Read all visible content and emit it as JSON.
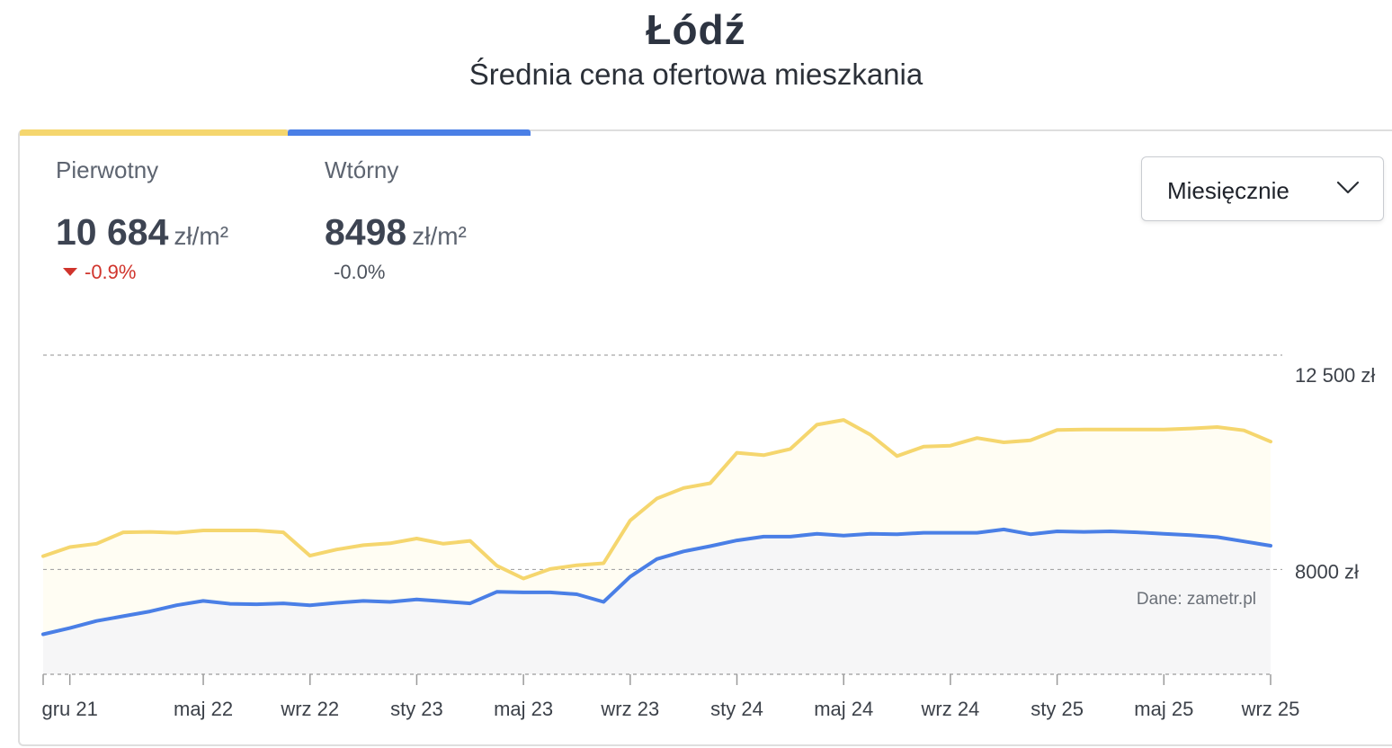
{
  "header": {
    "title": "Łódź",
    "subtitle": "Średnia cena ofertowa mieszkania"
  },
  "tabs": [
    {
      "label": "Pierwotny",
      "value": "10 684",
      "unit": "zł/m²",
      "change": "-0.9%",
      "trend": "down",
      "color": "#f5d66e"
    },
    {
      "label": "Wtórny",
      "value": "8498",
      "unit": "zł/m²",
      "change": "-0.0%",
      "trend": "flat",
      "color": "#4a7fe6"
    }
  ],
  "period_select": {
    "value": "Miesięcznie",
    "icon": "chevron-down-icon"
  },
  "source_note": "Dane: zametr.pl",
  "chart_data": {
    "type": "line",
    "x": [
      "2021-11",
      "2021-12",
      "2022-01",
      "2022-02",
      "2022-03",
      "2022-04",
      "2022-05",
      "2022-06",
      "2022-07",
      "2022-08",
      "2022-09",
      "2022-10",
      "2022-11",
      "2022-12",
      "2023-01",
      "2023-02",
      "2023-03",
      "2023-04",
      "2023-05",
      "2023-06",
      "2023-07",
      "2023-08",
      "2023-09",
      "2023-10",
      "2023-11",
      "2023-12",
      "2024-01",
      "2024-02",
      "2024-03",
      "2024-04",
      "2024-05",
      "2024-06",
      "2024-07",
      "2024-08",
      "2024-09",
      "2024-10",
      "2024-11",
      "2024-12",
      "2025-01",
      "2025-02",
      "2025-03",
      "2025-04",
      "2025-05",
      "2025-06",
      "2025-07",
      "2025-08",
      "2025-09"
    ],
    "series": [
      {
        "name": "Pierwotny",
        "color": "#f5d66e",
        "values": [
          8280,
          8470,
          8540,
          8780,
          8790,
          8770,
          8820,
          8820,
          8820,
          8780,
          8290,
          8420,
          8510,
          8550,
          8650,
          8540,
          8600,
          8080,
          7810,
          8010,
          8090,
          8130,
          9030,
          9490,
          9710,
          9810,
          10450,
          10400,
          10530,
          11040,
          11140,
          10830,
          10380,
          10580,
          10600,
          10760,
          10670,
          10710,
          10930,
          10940,
          10940,
          10940,
          10940,
          10960,
          10990,
          10920,
          10684
        ]
      },
      {
        "name": "Wtórny",
        "color": "#4a7fe6",
        "values": [
          6640,
          6770,
          6920,
          7020,
          7120,
          7250,
          7340,
          7280,
          7270,
          7290,
          7250,
          7300,
          7340,
          7320,
          7370,
          7330,
          7290,
          7530,
          7520,
          7520,
          7480,
          7320,
          7850,
          8220,
          8380,
          8490,
          8610,
          8690,
          8690,
          8750,
          8710,
          8750,
          8740,
          8770,
          8770,
          8770,
          8840,
          8740,
          8800,
          8790,
          8800,
          8780,
          8750,
          8720,
          8680,
          8590,
          8498
        ]
      }
    ],
    "x_tick_labels": [
      "gru 21",
      "maj 22",
      "wrz 22",
      "sty 23",
      "maj 23",
      "wrz 23",
      "sty 24",
      "maj 24",
      "wrz 24",
      "sty 25",
      "maj 25",
      "wrz 25"
    ],
    "x_tick_dates": [
      "2021-12",
      "2022-05",
      "2022-09",
      "2023-01",
      "2023-05",
      "2023-09",
      "2024-01",
      "2024-05",
      "2024-09",
      "2025-01",
      "2025-05",
      "2025-09"
    ],
    "y_ticks": [
      8000,
      12500
    ],
    "y_tick_labels": [
      "8000 zł",
      "12 500 zł"
    ],
    "ylim": [
      5800,
      12500
    ],
    "grid": true,
    "legend": "top-left tabs"
  }
}
